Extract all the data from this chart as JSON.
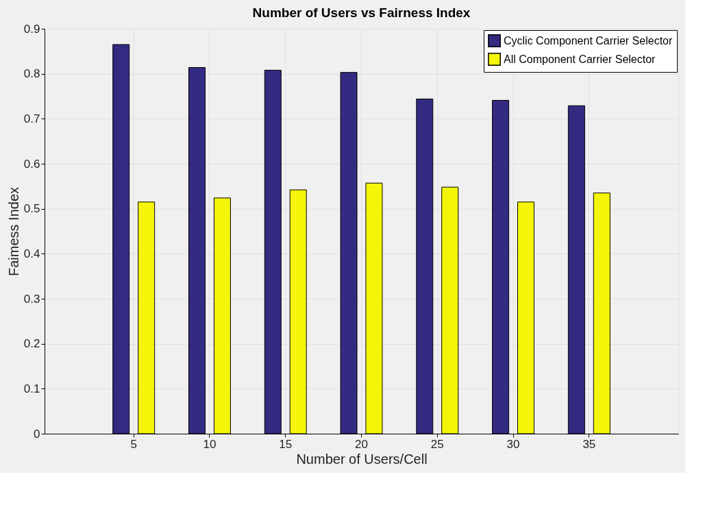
{
  "chart_data": {
    "type": "bar",
    "title": "Number of Users vs Fairness Index",
    "xlabel": "Number of Users/Cell",
    "ylabel": "Faimess Index",
    "categories": [
      "5",
      "10",
      "15",
      "20",
      "25",
      "30",
      "35"
    ],
    "series": [
      {
        "name": "Cyclic Component Carrier Selector",
        "color": "#332a82",
        "values": [
          0.865,
          0.814,
          0.808,
          0.803,
          0.744,
          0.741,
          0.729
        ]
      },
      {
        "name": "All Component Carrier Selector",
        "color": "#f5f50a",
        "values": [
          0.515,
          0.524,
          0.542,
          0.557,
          0.548,
          0.515,
          0.535
        ]
      }
    ],
    "ylim": [
      0,
      0.9
    ],
    "yticks": [
      0,
      0.1,
      0.2,
      0.3,
      0.4,
      0.5,
      0.6,
      0.7,
      0.8,
      0.9
    ],
    "grid": true,
    "legend": "top right"
  }
}
